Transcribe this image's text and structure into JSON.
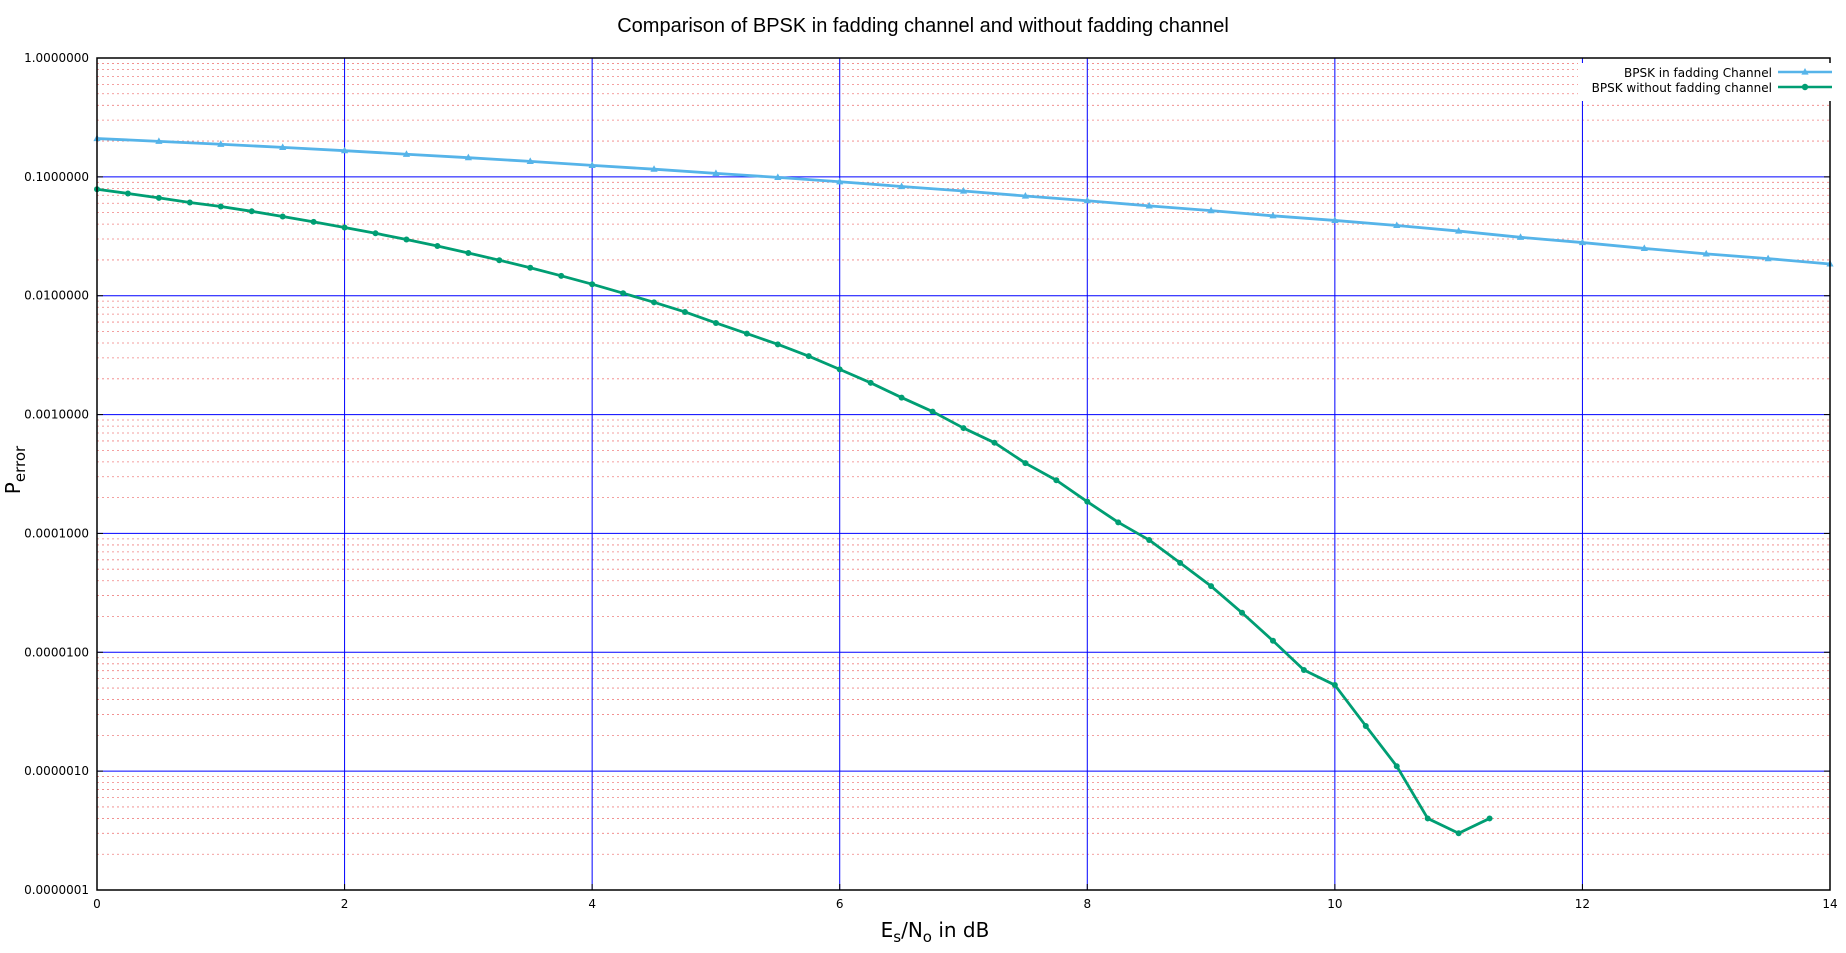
{
  "chart_data": {
    "type": "line",
    "title": "Comparison of BPSK in fadding channel and without fadding channel",
    "xlabel": {
      "main": "E",
      "sub1": "s",
      "mid": "/N",
      "sub2": "o",
      "tail": " in dB"
    },
    "ylabel": {
      "main": "P",
      "sub": "error"
    },
    "xlim": [
      0,
      14
    ],
    "ylim": [
      1e-07,
      1
    ],
    "y_scale": "log",
    "x_ticks": [
      "0",
      "2",
      "4",
      "6",
      "8",
      "10",
      "12",
      "14"
    ],
    "y_ticks": [
      "1.0000000",
      "0.1000000",
      "0.0100000",
      "0.0010000",
      "0.0001000",
      "0.0000100",
      "0.0000010",
      "0.0000001"
    ],
    "grid": {
      "major": true,
      "minor": true,
      "major_color": "#0000ff",
      "minor_color": "#f08080"
    },
    "legend_position": "top-right",
    "series": [
      {
        "name": "BPSK in fadding Channel",
        "color": "#56b4e9",
        "marker": "triangle",
        "x": [
          0,
          0.5,
          1,
          1.5,
          2,
          2.5,
          3,
          3.5,
          4,
          4.5,
          5,
          5.5,
          6,
          6.5,
          7,
          7.5,
          8,
          8.5,
          9,
          9.5,
          10,
          10.5,
          11,
          11.5,
          12,
          12.5,
          13,
          13.5,
          14
        ],
        "y": [
          0.21,
          0.199,
          0.188,
          0.177,
          0.166,
          0.155,
          0.145,
          0.135,
          0.125,
          0.116,
          0.107,
          0.099,
          0.091,
          0.083,
          0.076,
          0.069,
          0.063,
          0.057,
          0.052,
          0.047,
          0.043,
          0.039,
          0.035,
          0.031,
          0.028,
          0.025,
          0.0225,
          0.0205,
          0.0185
        ]
      },
      {
        "name": "BPSK without fadding channel",
        "color": "#009e73",
        "marker": "circle",
        "x": [
          0,
          0.25,
          0.5,
          0.75,
          1,
          1.25,
          1.5,
          1.75,
          2,
          2.25,
          2.5,
          2.75,
          3,
          3.25,
          3.5,
          3.75,
          4,
          4.25,
          4.5,
          4.75,
          5,
          5.25,
          5.5,
          5.75,
          6,
          6.25,
          6.5,
          6.75,
          7,
          7.25,
          7.5,
          7.75,
          8,
          8.25,
          8.5,
          8.75,
          9,
          9.25,
          9.5,
          9.75,
          10,
          10.25,
          10.5,
          10.75,
          11,
          11.25
        ],
        "y": [
          0.0786,
          0.0725,
          0.0666,
          0.0609,
          0.0563,
          0.0513,
          0.0464,
          0.0418,
          0.0375,
          0.0335,
          0.0297,
          0.0262,
          0.0229,
          0.0199,
          0.0172,
          0.0147,
          0.0125,
          0.0105,
          0.0088,
          0.0073,
          0.0059,
          0.0048,
          0.0039,
          0.0031,
          0.0024,
          0.00185,
          0.00139,
          0.00106,
          0.00077,
          0.00058,
          0.00039,
          0.00028,
          0.000185,
          0.000124,
          8.8e-05,
          5.65e-05,
          3.6e-05,
          2.15e-05,
          1.25e-05,
          7.1e-06,
          5.3e-06,
          2.4e-06,
          1.1e-06,
          4e-07,
          3e-07,
          4e-07
        ]
      }
    ]
  }
}
